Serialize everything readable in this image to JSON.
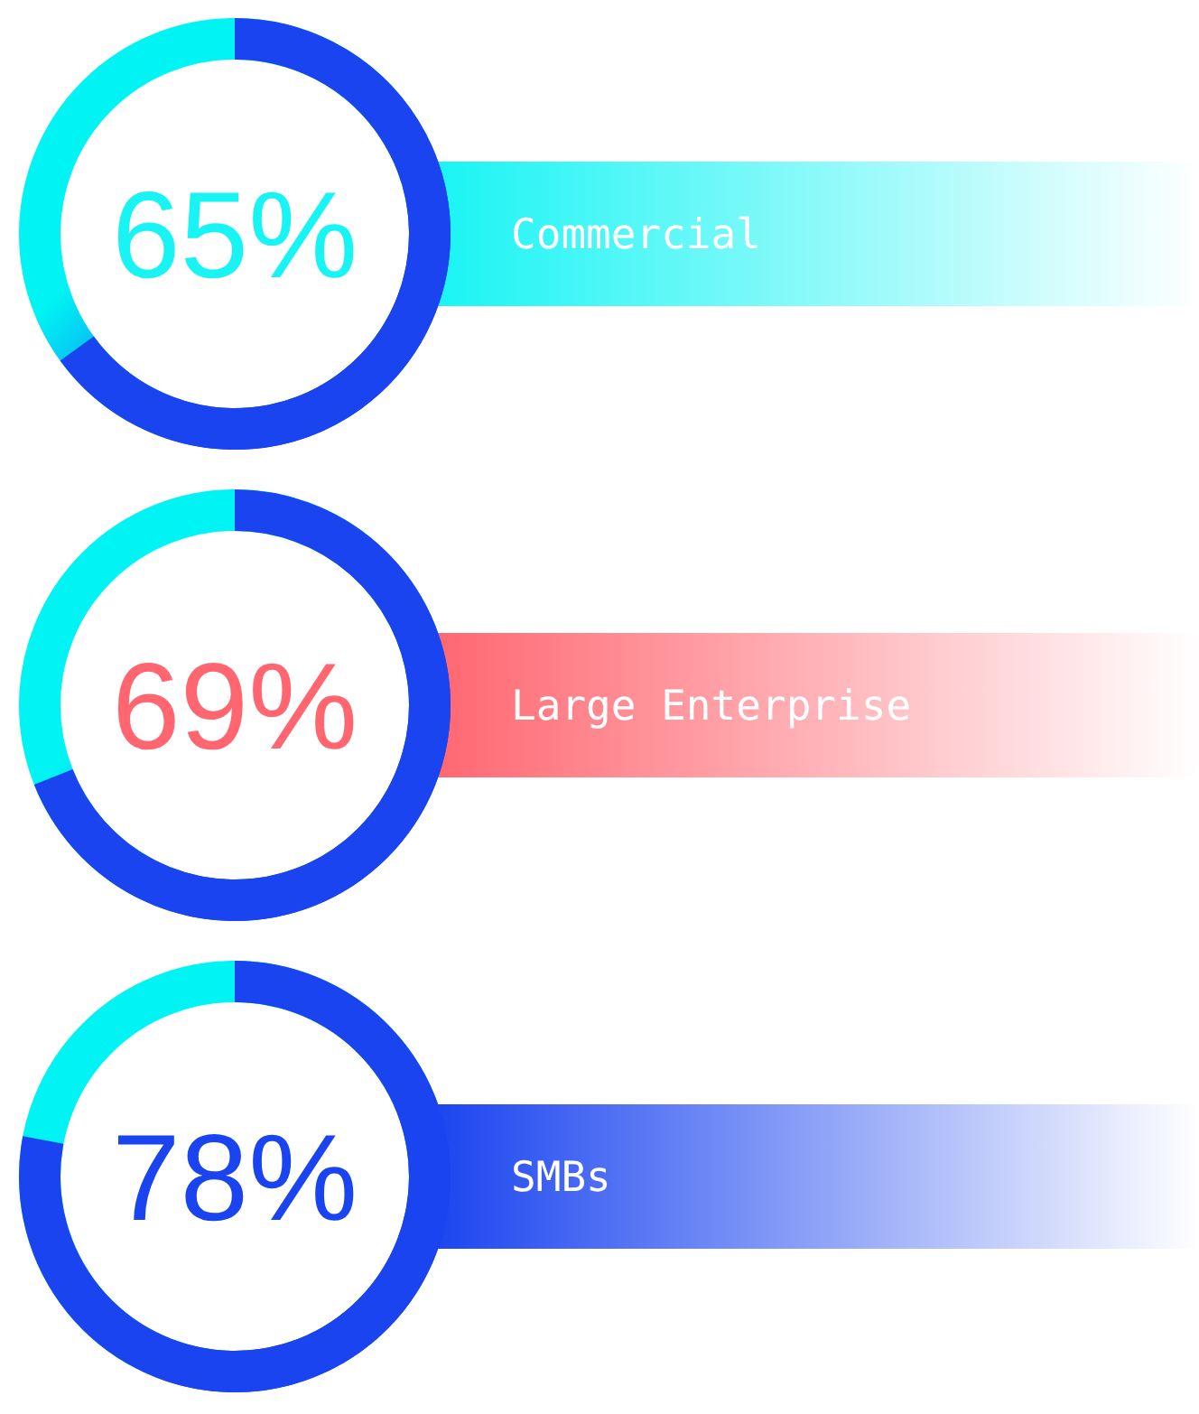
{
  "chart_data": {
    "type": "other",
    "categories": [
      "Commercial",
      "Large Enterprise",
      "SMBs"
    ],
    "values": [
      65,
      69,
      78
    ],
    "value_labels": [
      "65%",
      "69%",
      "78%"
    ],
    "colors": [
      "#18f4f4",
      "#ff6670",
      "#1a44f0"
    ]
  }
}
